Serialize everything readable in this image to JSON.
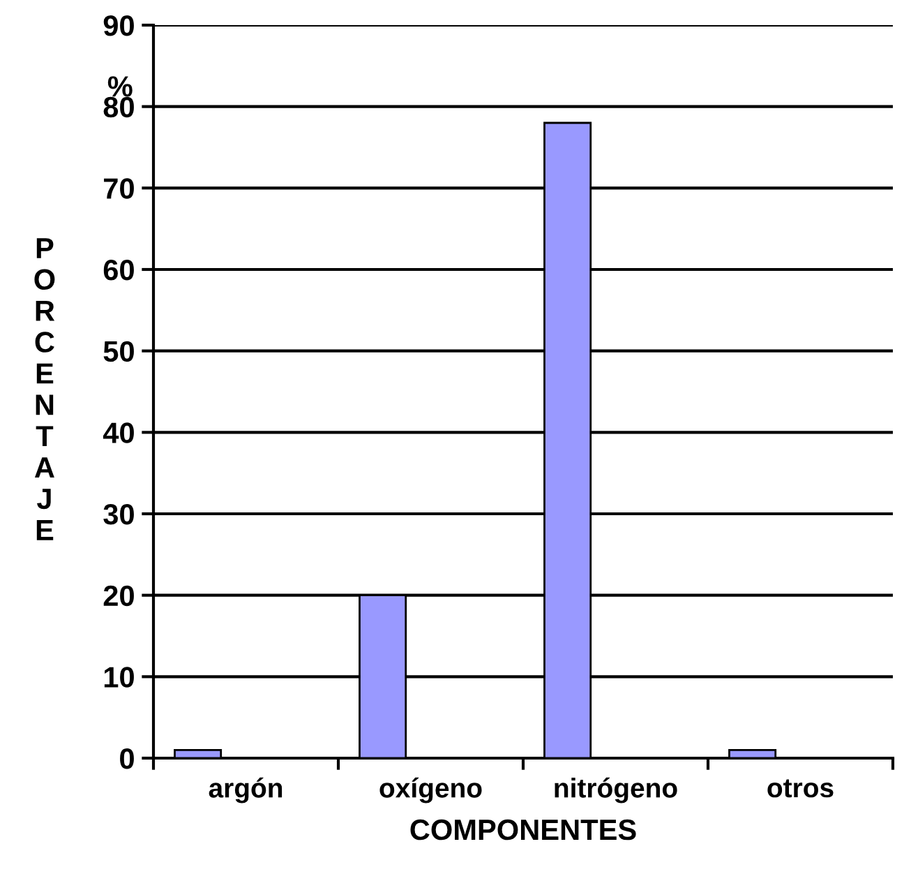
{
  "chart_data": {
    "type": "bar",
    "xlabel": "COMPONENTES",
    "ylabel": "PORCENTAJE",
    "annotations": [
      "%"
    ],
    "categories": [
      "argón",
      "oxígeno",
      "nitrógeno",
      "otros"
    ],
    "values": [
      1,
      20,
      78,
      1
    ],
    "color": "#9999ff",
    "ylim": [
      0,
      90
    ],
    "yticks": [
      0,
      10,
      20,
      30,
      40,
      50,
      60,
      70,
      80,
      90
    ],
    "grid": "y",
    "legend": false
  }
}
